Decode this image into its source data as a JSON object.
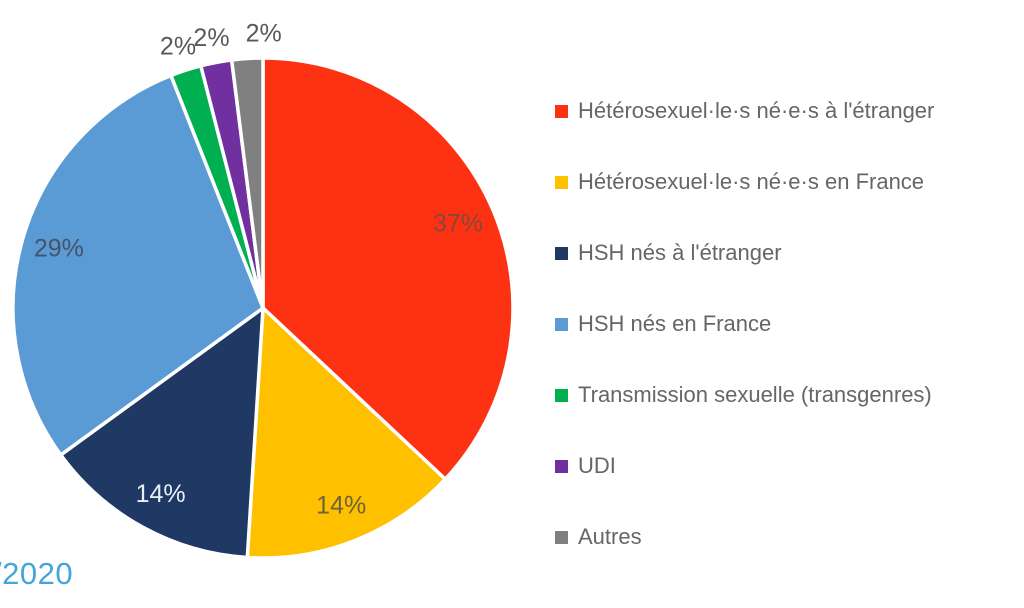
{
  "chart_data": {
    "type": "pie",
    "title": "",
    "legend_position": "right",
    "start_angle_deg": 0,
    "direction": "clockwise",
    "slices": [
      {
        "label": "Hétérosexuel·le·s né·e·s à l'étranger",
        "value": 37,
        "display_value": "37%",
        "color": "#FC3212",
        "value_label_color": "#8A4638",
        "value_label_position": "inside"
      },
      {
        "label": "Hétérosexuel·le·s né·e·s en France",
        "value": 14,
        "display_value": "14%",
        "color": "#FFC000",
        "value_label_color": "#6E6239",
        "value_label_position": "inside"
      },
      {
        "label": "HSH nés à l'étranger",
        "value": 14,
        "display_value": "14%",
        "color": "#1F3864",
        "value_label_color": "#EAF0F8",
        "value_label_position": "inside"
      },
      {
        "label": "HSH nés en France",
        "value": 29,
        "display_value": "29%",
        "color": "#5B9BD5",
        "value_label_color": "#44546A",
        "value_label_position": "inside"
      },
      {
        "label": "Transmission sexuelle (transgenres)",
        "value": 2,
        "display_value": "2%",
        "color": "#00B050",
        "value_label_color": "#595959",
        "value_label_position": "outside"
      },
      {
        "label": "UDI",
        "value": 2,
        "display_value": "2%",
        "color": "#7030A0",
        "value_label_color": "#595959",
        "value_label_position": "outside"
      },
      {
        "label": "Autres",
        "value": 2,
        "display_value": "2%",
        "color": "#808080",
        "value_label_color": "#595959",
        "value_label_position": "outside"
      }
    ]
  },
  "legend": {
    "text_color": "#666666"
  },
  "footer": {
    "text": "/2020",
    "color": "#45A5D8"
  }
}
